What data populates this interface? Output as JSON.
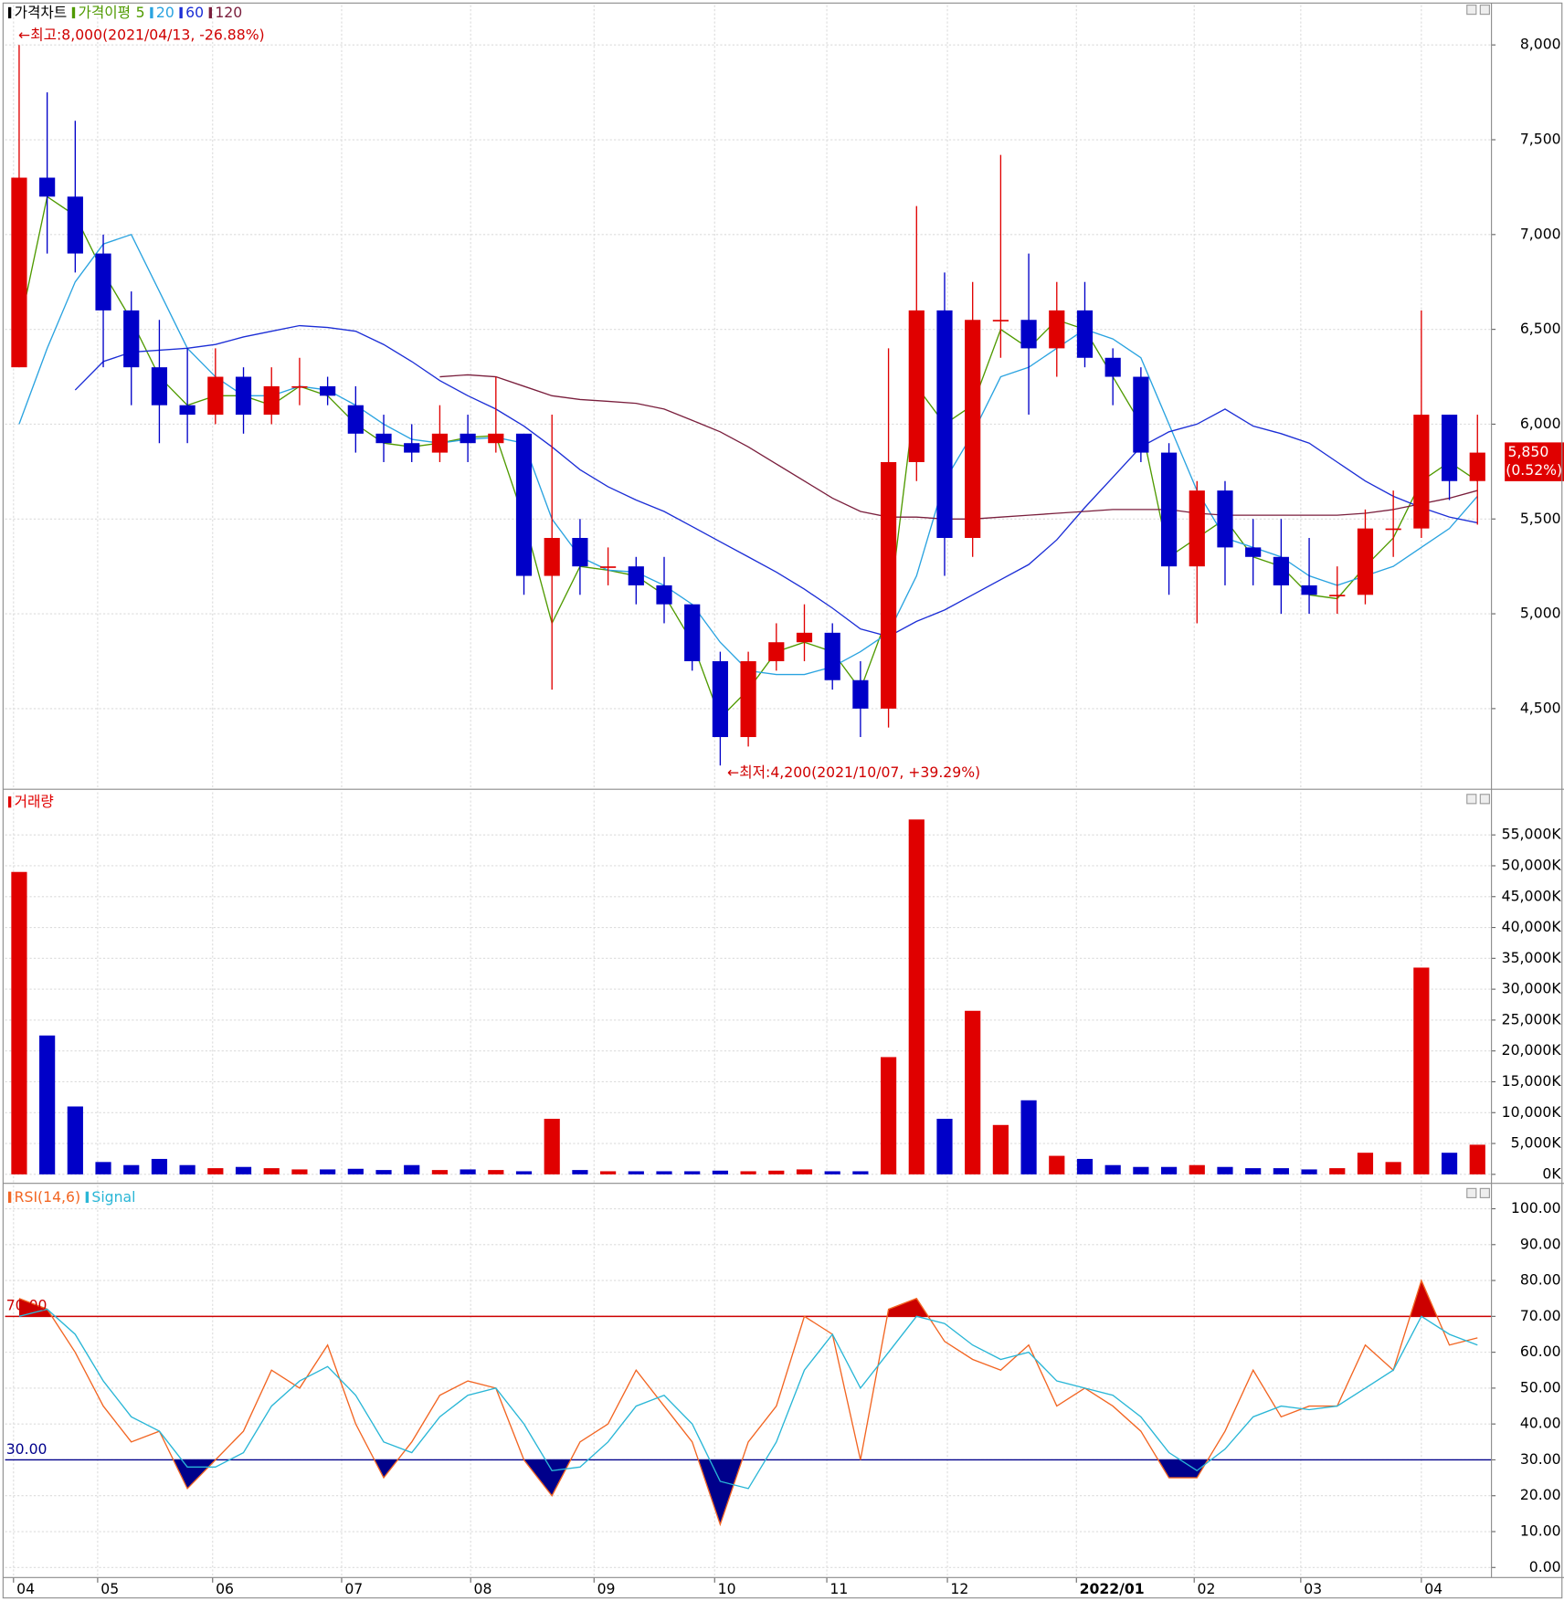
{
  "chart_data": [
    {
      "type": "candlestick",
      "title": "가격차트",
      "ma_title": "가격이평",
      "high_label": "←최고:8,000(2021/04/13, -26.88%)",
      "low_label": "←최저:4,200(2021/10/07, +39.29%)",
      "last_label": "5,850",
      "last_change": "(0.52%)",
      "up_color": "#e00000",
      "down_color": "#0000c8",
      "open": [
        6300,
        7300,
        7200,
        6900,
        6600,
        6300,
        6100,
        6050,
        6250,
        6050,
        6200,
        6200,
        6100,
        5950,
        5900,
        5850,
        5950,
        5900,
        5950,
        5200,
        5400,
        5250,
        5250,
        5150,
        5050,
        4750,
        4350,
        4750,
        4850,
        4900,
        4650,
        4500,
        5800,
        6600,
        5400,
        6550,
        6550,
        6400,
        6600,
        6350,
        6250,
        5850,
        5250,
        5650,
        5350,
        5300,
        5150,
        5100,
        5100,
        5450,
        5450,
        6050,
        5700
      ],
      "high": [
        8000,
        7750,
        7600,
        7000,
        6700,
        6550,
        6400,
        6400,
        6300,
        6300,
        6350,
        6250,
        6200,
        6050,
        6000,
        6100,
        6050,
        6250,
        5950,
        6050,
        5500,
        5350,
        5300,
        5300,
        5050,
        4800,
        4800,
        4950,
        5050,
        4950,
        4750,
        6400,
        7150,
        6800,
        6750,
        7420,
        6900,
        6750,
        6750,
        6400,
        6300,
        5900,
        5700,
        5700,
        5500,
        5500,
        5400,
        5250,
        5550,
        5650,
        6600,
        6050,
        6050
      ],
      "low": [
        6300,
        6900,
        6800,
        6300,
        6100,
        5900,
        5900,
        6000,
        5950,
        6000,
        6100,
        6100,
        5850,
        5800,
        5800,
        5800,
        5800,
        5850,
        5100,
        4600,
        5100,
        5150,
        5050,
        4950,
        4700,
        4200,
        4300,
        4700,
        4750,
        4600,
        4350,
        4400,
        5700,
        5200,
        5300,
        6350,
        6050,
        6250,
        6300,
        6100,
        5800,
        5100,
        4950,
        5150,
        5150,
        5000,
        5000,
        5000,
        5050,
        5300,
        5400,
        5600,
        5470
      ],
      "close": [
        7300,
        7200,
        6900,
        6600,
        6300,
        6100,
        6050,
        6250,
        6050,
        6200,
        6200,
        6150,
        5950,
        5900,
        5850,
        5950,
        5900,
        5950,
        5200,
        5400,
        5250,
        5250,
        5150,
        5050,
        4750,
        4350,
        4750,
        4850,
        4900,
        4650,
        4500,
        5800,
        6600,
        5400,
        6550,
        6550,
        6400,
        6600,
        6350,
        6250,
        5850,
        5250,
        5650,
        5350,
        5300,
        5150,
        5100,
        5100,
        5450,
        5450,
        6050,
        5700,
        5850
      ],
      "series": [
        {
          "name": "5",
          "color": "#4f9a00",
          "values": [
            6500,
            7200,
            7100,
            6800,
            6550,
            6250,
            6100,
            6150,
            6150,
            6100,
            6200,
            6150,
            6000,
            5900,
            5880,
            5900,
            5930,
            5940,
            5500,
            4950,
            5250,
            5230,
            5200,
            5100,
            4850,
            4450,
            4600,
            4800,
            4850,
            4800,
            4600,
            5000,
            6200,
            6000,
            6100,
            6500,
            6400,
            6550,
            6500,
            6250,
            6000,
            5300,
            5400,
            5500,
            5300,
            5250,
            5100,
            5080,
            5250,
            5400,
            5700,
            5800,
            5700
          ]
        },
        {
          "name": "20",
          "color": "#2aa3e0",
          "values": [
            6000,
            6400,
            6750,
            6950,
            7000,
            6700,
            6400,
            6250,
            6150,
            6150,
            6200,
            6180,
            6100,
            6000,
            5920,
            5900,
            5920,
            5930,
            5900,
            5500,
            5300,
            5230,
            5220,
            5150,
            5050,
            4850,
            4700,
            4680,
            4680,
            4720,
            4800,
            4900,
            5200,
            5700,
            5950,
            6250,
            6300,
            6400,
            6500,
            6450,
            6350,
            6000,
            5650,
            5400,
            5350,
            5300,
            5200,
            5150,
            5200,
            5250,
            5350,
            5450,
            5620
          ]
        },
        {
          "name": "60",
          "color": "#1c2ed6",
          "values": [
            null,
            null,
            6180,
            6330,
            6380,
            6390,
            6400,
            6420,
            6460,
            6490,
            6520,
            6510,
            6490,
            6420,
            6330,
            6230,
            6150,
            6080,
            5990,
            5880,
            5760,
            5670,
            5600,
            5540,
            5460,
            5380,
            5300,
            5220,
            5130,
            5030,
            4920,
            4880,
            4960,
            5020,
            5100,
            5180,
            5260,
            5390,
            5560,
            5720,
            5880,
            5960,
            6000,
            6080,
            5990,
            5950,
            5900,
            5800,
            5700,
            5620,
            5560,
            5510,
            5480
          ]
        },
        {
          "name": "120",
          "color": "#7a1f3d",
          "values": [
            null,
            null,
            null,
            null,
            null,
            null,
            null,
            null,
            null,
            null,
            null,
            null,
            null,
            null,
            null,
            6250,
            6260,
            6250,
            6200,
            6150,
            6130,
            6120,
            6110,
            6080,
            6020,
            5960,
            5880,
            5790,
            5700,
            5610,
            5540,
            5510,
            5510,
            5500,
            5500,
            5510,
            5520,
            5530,
            5540,
            5550,
            5550,
            5550,
            5530,
            5520,
            5520,
            5520,
            5520,
            5520,
            5530,
            5550,
            5580,
            5610,
            5650
          ]
        }
      ],
      "ylim": [
        4080,
        8210
      ],
      "yticks": [
        {
          "value": 4500,
          "label": "4,500"
        },
        {
          "value": 5000,
          "label": "5,000"
        },
        {
          "value": 5500,
          "label": "5,500"
        },
        {
          "value": 6000,
          "label": "6,000"
        },
        {
          "value": 6500,
          "label": "6,500"
        },
        {
          "value": 7000,
          "label": "7,000"
        },
        {
          "value": 7500,
          "label": "7,500"
        },
        {
          "value": 8000,
          "label": "8,000"
        }
      ],
      "grid": true
    },
    {
      "type": "bar",
      "title": "거래량",
      "color": "#e00000",
      "values": [
        49000,
        22500,
        11000,
        2000,
        1500,
        2500,
        1500,
        1000,
        1200,
        1000,
        800,
        800,
        900,
        700,
        1500,
        700,
        800,
        700,
        500,
        9000,
        700,
        500,
        500,
        500,
        500,
        600,
        500,
        600,
        800,
        500,
        500,
        19000,
        57500,
        9000,
        26500,
        8000,
        12000,
        3000,
        2500,
        1500,
        1200,
        1200,
        1500,
        1200,
        1000,
        1000,
        800,
        1000,
        3500,
        2000,
        33500,
        3500,
        4800
      ],
      "ylim": [
        -1300,
        61900
      ],
      "yticks": [
        {
          "value": 0,
          "label": "0K"
        },
        {
          "value": 5000,
          "label": "5,000K"
        },
        {
          "value": 10000,
          "label": "10,000K"
        },
        {
          "value": 15000,
          "label": "15,000K"
        },
        {
          "value": 20000,
          "label": "20,000K"
        },
        {
          "value": 25000,
          "label": "25,000K"
        },
        {
          "value": 30000,
          "label": "30,000K"
        },
        {
          "value": 35000,
          "label": "35,000K"
        },
        {
          "value": 40000,
          "label": "40,000K"
        },
        {
          "value": 45000,
          "label": "45,000K"
        },
        {
          "value": 50000,
          "label": "50,000K"
        },
        {
          "value": 55000,
          "label": "55,000K"
        }
      ],
      "grid": true
    },
    {
      "type": "line",
      "xlim": [
        0,
        53
      ],
      "xticks": [
        {
          "value": 0.3,
          "label": "04"
        },
        {
          "value": 3.3,
          "label": "05"
        },
        {
          "value": 7.4,
          "label": "06"
        },
        {
          "value": 12,
          "label": "07"
        },
        {
          "value": 16.6,
          "label": "08"
        },
        {
          "value": 21,
          "label": "09"
        },
        {
          "value": 25.3,
          "label": "10"
        },
        {
          "value": 29.3,
          "label": "11"
        },
        {
          "value": 33.6,
          "label": "12"
        },
        {
          "value": 38.2,
          "label": "2022/01"
        },
        {
          "value": 42.4,
          "label": "02"
        },
        {
          "value": 46.2,
          "label": "03"
        },
        {
          "value": 50.5,
          "label": "04"
        }
      ],
      "series": [
        {
          "name": "RSI(14,6)",
          "color": "#f26522",
          "values": [
            75,
            72,
            60,
            45,
            35,
            38,
            22,
            30,
            38,
            55,
            50,
            62,
            40,
            25,
            35,
            48,
            52,
            50,
            30,
            20,
            35,
            40,
            55,
            45,
            35,
            12,
            35,
            45,
            70,
            65,
            30,
            72,
            75,
            63,
            58,
            55,
            62,
            45,
            50,
            45,
            38,
            25,
            25,
            38,
            55,
            42,
            45,
            45,
            62,
            55,
            80,
            62,
            64
          ]
        },
        {
          "name": "Signal",
          "color": "#29b6d6",
          "values": [
            70,
            72,
            65,
            52,
            42,
            38,
            28,
            28,
            32,
            45,
            52,
            56,
            48,
            35,
            32,
            42,
            48,
            50,
            40,
            27,
            28,
            35,
            45,
            48,
            40,
            24,
            22,
            35,
            55,
            65,
            50,
            60,
            70,
            68,
            62,
            58,
            60,
            52,
            50,
            48,
            42,
            32,
            27,
            33,
            42,
            45,
            44,
            45,
            50,
            55,
            70,
            65,
            62
          ]
        }
      ],
      "levels": [
        {
          "value": 70,
          "label": "70.00",
          "color": "#cc0000"
        },
        {
          "value": 30,
          "label": "30.00",
          "color": "#00008b"
        }
      ],
      "ylim": [
        -2.8,
        106.5
      ],
      "yticks": [
        {
          "value": 0,
          "label": "0.00"
        },
        {
          "value": 10,
          "label": "10.00"
        },
        {
          "value": 20,
          "label": "20.00"
        },
        {
          "value": 30,
          "label": "30.00"
        },
        {
          "value": 40,
          "label": "40.00"
        },
        {
          "value": 50,
          "label": "50.00"
        },
        {
          "value": 60,
          "label": "60.00"
        },
        {
          "value": 70,
          "label": "70.00"
        },
        {
          "value": 80,
          "label": "80.00"
        },
        {
          "value": 90,
          "label": "90.00"
        },
        {
          "value": 100,
          "label": "100.00"
        }
      ],
      "grid": true
    }
  ]
}
